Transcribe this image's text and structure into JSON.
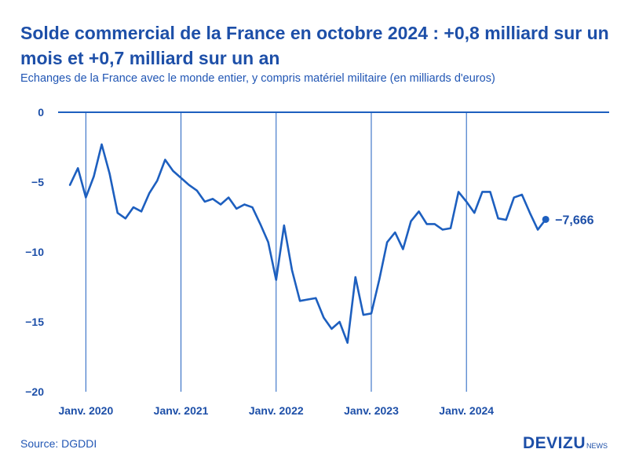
{
  "header": {
    "title": "Solde commercial de la France en octobre 2024 : +0,8 milliard sur un mois et +0,7 milliard sur un an",
    "subtitle": "Echanges de la France avec le monde entier, y compris matériel militaire (en milliards d'euros)"
  },
  "footer": {
    "source": "Source: DGDDI",
    "brand": "DEVIZU",
    "brand_suffix": "NEWS"
  },
  "colors": {
    "line": "#1d5fbf",
    "axis": "#1d5fbf",
    "text": "#1d4fa8"
  },
  "chart_data": {
    "type": "line",
    "title": "Solde commercial de la France en octobre 2024 : +0,8 milliard sur un mois et +0,7 milliard sur un an",
    "subtitle": "Echanges de la France avec le monde entier, y compris matériel militaire (en milliards d'euros)",
    "xlabel": "",
    "ylabel": "",
    "ylim": [
      -20,
      0
    ],
    "y_ticks": [
      0,
      -5,
      -10,
      -15,
      -20
    ],
    "y_tick_labels": [
      "0",
      "−5",
      "−10",
      "−15",
      "−20"
    ],
    "x_tick_labels": [
      "Janv. 2020",
      "Janv. 2021",
      "Janv. 2022",
      "Janv. 2023",
      "Janv. 2024"
    ],
    "x_tick_month_index": [
      2,
      14,
      26,
      38,
      50
    ],
    "x_range": [
      -1.5,
      68
    ],
    "gridlines": "vertical at each January",
    "start_month": "2019-11",
    "series": [
      {
        "name": "Solde commercial",
        "values": [
          -5.2,
          -4.0,
          -6.1,
          -4.6,
          -2.3,
          -4.4,
          -7.2,
          -7.6,
          -6.8,
          -7.1,
          -5.8,
          -4.9,
          -3.4,
          -4.2,
          -4.7,
          -5.2,
          -5.6,
          -6.4,
          -6.2,
          -6.6,
          -6.1,
          -6.9,
          -6.6,
          -6.8,
          -8.0,
          -9.3,
          -12.0,
          -8.1,
          -11.3,
          -13.5,
          -13.4,
          -13.3,
          -14.7,
          -15.5,
          -15.0,
          -16.5,
          -11.8,
          -14.5,
          -14.4,
          -12.0,
          -9.3,
          -8.6,
          -9.8,
          -7.8,
          -7.1,
          -8.0,
          -8.0,
          -8.4,
          -8.3,
          -5.7,
          -6.4,
          -7.2,
          -5.7,
          -5.7,
          -7.6,
          -7.7,
          -6.1,
          -5.9,
          -7.2,
          -8.4,
          -7.666
        ]
      }
    ],
    "last_value": -7.666,
    "last_value_label": "−7,666"
  }
}
